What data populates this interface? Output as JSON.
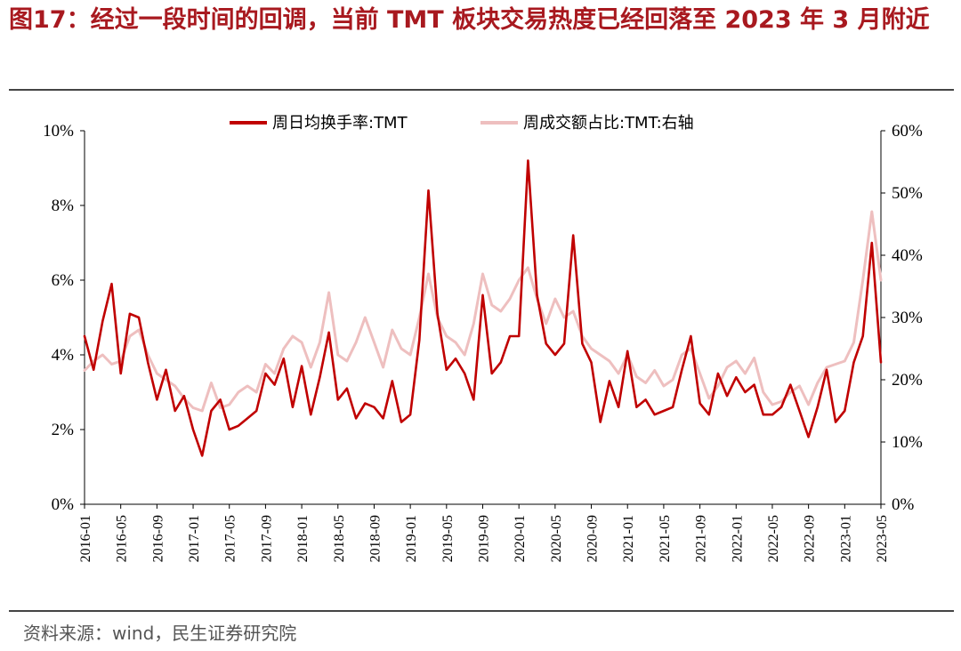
{
  "figure": {
    "title": "图17：经过一段时间的回调，当前 TMT 板块交易热度已经回落至 2023 年 3 月附近",
    "source": "资料来源：wind，民生证券研究院"
  },
  "chart_data": {
    "type": "line",
    "title": "",
    "xlabel": "",
    "ylabel": "",
    "x_start": "2016-01",
    "x_end": "2023-05",
    "x_ticks": [
      "2016-01",
      "2016-05",
      "2016-09",
      "2017-01",
      "2017-05",
      "2017-09",
      "2018-01",
      "2018-05",
      "2018-09",
      "2019-01",
      "2019-05",
      "2019-09",
      "2020-01",
      "2020-05",
      "2020-09",
      "2021-01",
      "2021-05",
      "2021-09",
      "2022-01",
      "2022-05",
      "2022-09",
      "2023-01",
      "2023-05"
    ],
    "y_left": {
      "min": 0,
      "max": 10,
      "ticks": [
        "0%",
        "2%",
        "4%",
        "6%",
        "8%",
        "10%"
      ]
    },
    "y_right": {
      "min": 0,
      "max": 60,
      "ticks": [
        "0%",
        "10%",
        "20%",
        "30%",
        "40%",
        "50%",
        "60%"
      ]
    },
    "legend_position": "top",
    "grid": false,
    "series": [
      {
        "name": "周日均换手率:TMT",
        "axis": "left",
        "color": "#c00000",
        "points": [
          [
            "2016-01",
            4.5
          ],
          [
            "2016-02",
            3.6
          ],
          [
            "2016-03",
            4.9
          ],
          [
            "2016-04",
            5.9
          ],
          [
            "2016-05",
            3.5
          ],
          [
            "2016-06",
            5.1
          ],
          [
            "2016-07",
            5.0
          ],
          [
            "2016-08",
            3.8
          ],
          [
            "2016-09",
            2.8
          ],
          [
            "2016-10",
            3.6
          ],
          [
            "2016-11",
            2.5
          ],
          [
            "2016-12",
            2.9
          ],
          [
            "2017-01",
            2.0
          ],
          [
            "2017-02",
            1.3
          ],
          [
            "2017-03",
            2.5
          ],
          [
            "2017-04",
            2.8
          ],
          [
            "2017-05",
            2.0
          ],
          [
            "2017-06",
            2.1
          ],
          [
            "2017-07",
            2.3
          ],
          [
            "2017-08",
            2.5
          ],
          [
            "2017-09",
            3.5
          ],
          [
            "2017-10",
            3.2
          ],
          [
            "2017-11",
            3.9
          ],
          [
            "2017-12",
            2.6
          ],
          [
            "2018-01",
            3.7
          ],
          [
            "2018-02",
            2.4
          ],
          [
            "2018-03",
            3.4
          ],
          [
            "2018-04",
            4.6
          ],
          [
            "2018-05",
            2.8
          ],
          [
            "2018-06",
            3.1
          ],
          [
            "2018-07",
            2.3
          ],
          [
            "2018-08",
            2.7
          ],
          [
            "2018-09",
            2.6
          ],
          [
            "2018-10",
            2.3
          ],
          [
            "2018-11",
            3.3
          ],
          [
            "2018-12",
            2.2
          ],
          [
            "2019-01",
            2.4
          ],
          [
            "2019-02",
            4.4
          ],
          [
            "2019-03",
            8.4
          ],
          [
            "2019-04",
            5.1
          ],
          [
            "2019-05",
            3.6
          ],
          [
            "2019-06",
            3.9
          ],
          [
            "2019-07",
            3.5
          ],
          [
            "2019-08",
            2.8
          ],
          [
            "2019-09",
            5.6
          ],
          [
            "2019-10",
            3.5
          ],
          [
            "2019-11",
            3.8
          ],
          [
            "2019-12",
            4.5
          ],
          [
            "2020-01",
            4.5
          ],
          [
            "2020-02",
            9.2
          ],
          [
            "2020-03",
            5.6
          ],
          [
            "2020-04",
            4.3
          ],
          [
            "2020-05",
            4.0
          ],
          [
            "2020-06",
            4.3
          ],
          [
            "2020-07",
            7.2
          ],
          [
            "2020-08",
            4.3
          ],
          [
            "2020-09",
            3.8
          ],
          [
            "2020-10",
            2.2
          ],
          [
            "2020-11",
            3.3
          ],
          [
            "2020-12",
            2.6
          ],
          [
            "2021-01",
            4.1
          ],
          [
            "2021-02",
            2.6
          ],
          [
            "2021-03",
            2.8
          ],
          [
            "2021-04",
            2.4
          ],
          [
            "2021-05",
            2.5
          ],
          [
            "2021-06",
            2.6
          ],
          [
            "2021-07",
            3.6
          ],
          [
            "2021-08",
            4.5
          ],
          [
            "2021-09",
            2.7
          ],
          [
            "2021-10",
            2.4
          ],
          [
            "2021-11",
            3.5
          ],
          [
            "2021-12",
            2.9
          ],
          [
            "2022-01",
            3.4
          ],
          [
            "2022-02",
            3.0
          ],
          [
            "2022-03",
            3.2
          ],
          [
            "2022-04",
            2.4
          ],
          [
            "2022-05",
            2.4
          ],
          [
            "2022-06",
            2.6
          ],
          [
            "2022-07",
            3.2
          ],
          [
            "2022-08",
            2.5
          ],
          [
            "2022-09",
            1.8
          ],
          [
            "2022-10",
            2.6
          ],
          [
            "2022-11",
            3.6
          ],
          [
            "2022-12",
            2.2
          ],
          [
            "2023-01",
            2.5
          ],
          [
            "2023-02",
            3.8
          ],
          [
            "2023-03",
            4.5
          ],
          [
            "2023-04",
            7.0
          ],
          [
            "2023-05",
            3.8
          ]
        ]
      },
      {
        "name": "周成交额占比:TMT:右轴",
        "axis": "right",
        "color": "#eebfbf",
        "points": [
          [
            "2016-01",
            21.5
          ],
          [
            "2016-02",
            23.0
          ],
          [
            "2016-03",
            24.0
          ],
          [
            "2016-04",
            22.5
          ],
          [
            "2016-05",
            23.0
          ],
          [
            "2016-06",
            27.0
          ],
          [
            "2016-07",
            28.0
          ],
          [
            "2016-08",
            24.0
          ],
          [
            "2016-09",
            21.0
          ],
          [
            "2016-10",
            20.0
          ],
          [
            "2016-11",
            19.0
          ],
          [
            "2016-12",
            17.0
          ],
          [
            "2017-01",
            15.5
          ],
          [
            "2017-02",
            15.0
          ],
          [
            "2017-03",
            19.5
          ],
          [
            "2017-04",
            15.5
          ],
          [
            "2017-05",
            16.0
          ],
          [
            "2017-06",
            18.0
          ],
          [
            "2017-07",
            19.0
          ],
          [
            "2017-08",
            18.0
          ],
          [
            "2017-09",
            22.5
          ],
          [
            "2017-10",
            21.0
          ],
          [
            "2017-11",
            25.0
          ],
          [
            "2017-12",
            27.0
          ],
          [
            "2018-01",
            26.0
          ],
          [
            "2018-02",
            22.0
          ],
          [
            "2018-03",
            26.0
          ],
          [
            "2018-04",
            34.0
          ],
          [
            "2018-05",
            24.0
          ],
          [
            "2018-06",
            23.0
          ],
          [
            "2018-07",
            26.0
          ],
          [
            "2018-08",
            30.0
          ],
          [
            "2018-09",
            26.0
          ],
          [
            "2018-10",
            22.0
          ],
          [
            "2018-11",
            28.0
          ],
          [
            "2018-12",
            25.0
          ],
          [
            "2019-01",
            24.0
          ],
          [
            "2019-02",
            30.0
          ],
          [
            "2019-03",
            37.0
          ],
          [
            "2019-04",
            30.0
          ],
          [
            "2019-05",
            27.0
          ],
          [
            "2019-06",
            26.0
          ],
          [
            "2019-07",
            24.0
          ],
          [
            "2019-08",
            29.0
          ],
          [
            "2019-09",
            37.0
          ],
          [
            "2019-10",
            32.0
          ],
          [
            "2019-11",
            31.0
          ],
          [
            "2019-12",
            33.0
          ],
          [
            "2020-01",
            36.0
          ],
          [
            "2020-02",
            38.0
          ],
          [
            "2020-03",
            33.0
          ],
          [
            "2020-04",
            29.0
          ],
          [
            "2020-05",
            33.0
          ],
          [
            "2020-06",
            30.0
          ],
          [
            "2020-07",
            31.0
          ],
          [
            "2020-08",
            27.0
          ],
          [
            "2020-09",
            25.0
          ],
          [
            "2020-10",
            24.0
          ],
          [
            "2020-11",
            23.0
          ],
          [
            "2020-12",
            21.0
          ],
          [
            "2021-01",
            24.0
          ],
          [
            "2021-02",
            20.5
          ],
          [
            "2021-03",
            19.5
          ],
          [
            "2021-04",
            21.5
          ],
          [
            "2021-05",
            19.0
          ],
          [
            "2021-06",
            20.0
          ],
          [
            "2021-07",
            24.0
          ],
          [
            "2021-08",
            25.0
          ],
          [
            "2021-09",
            21.0
          ],
          [
            "2021-10",
            17.0
          ],
          [
            "2021-11",
            19.0
          ],
          [
            "2021-12",
            22.0
          ],
          [
            "2022-01",
            23.0
          ],
          [
            "2022-02",
            21.0
          ],
          [
            "2022-03",
            23.5
          ],
          [
            "2022-04",
            18.0
          ],
          [
            "2022-05",
            16.0
          ],
          [
            "2022-06",
            16.5
          ],
          [
            "2022-07",
            18.0
          ],
          [
            "2022-08",
            19.0
          ],
          [
            "2022-09",
            16.0
          ],
          [
            "2022-10",
            19.5
          ],
          [
            "2022-11",
            22.0
          ],
          [
            "2022-12",
            22.5
          ],
          [
            "2023-01",
            23.0
          ],
          [
            "2023-02",
            26.0
          ],
          [
            "2023-03",
            36.0
          ],
          [
            "2023-04",
            47.0
          ],
          [
            "2023-05",
            36.0
          ]
        ]
      }
    ]
  }
}
